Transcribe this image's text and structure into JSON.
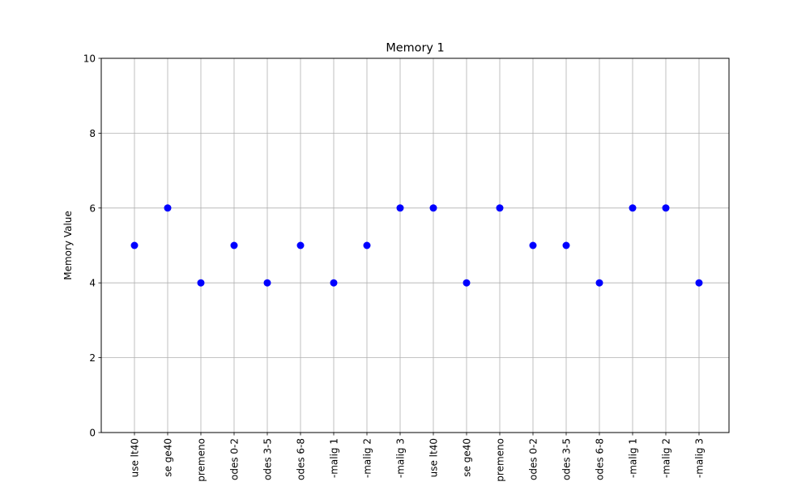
{
  "chart_data": {
    "type": "scatter",
    "title": "Memory 1",
    "xlabel": "",
    "ylabel": "Memory Value",
    "categories": [
      "use lt40",
      "se ge40",
      "premeno",
      "odes 0-2",
      "odes 3-5",
      "odes 6-8",
      "-malig 1",
      "-malig 2",
      "-malig 3",
      "use lt40",
      "se ge40",
      "premeno",
      "odes 0-2",
      "odes 3-5",
      "odes 6-8",
      "-malig 1",
      "-malig 2",
      "-malig 3"
    ],
    "values": [
      5,
      6,
      4,
      5,
      4,
      5,
      4,
      5,
      6,
      6,
      4,
      6,
      5,
      5,
      4,
      6,
      6,
      4
    ],
    "ylim": [
      0,
      10
    ],
    "yticks": [
      0,
      2,
      4,
      6,
      8,
      10
    ],
    "grid": true,
    "marker_color": "#0000ff"
  }
}
